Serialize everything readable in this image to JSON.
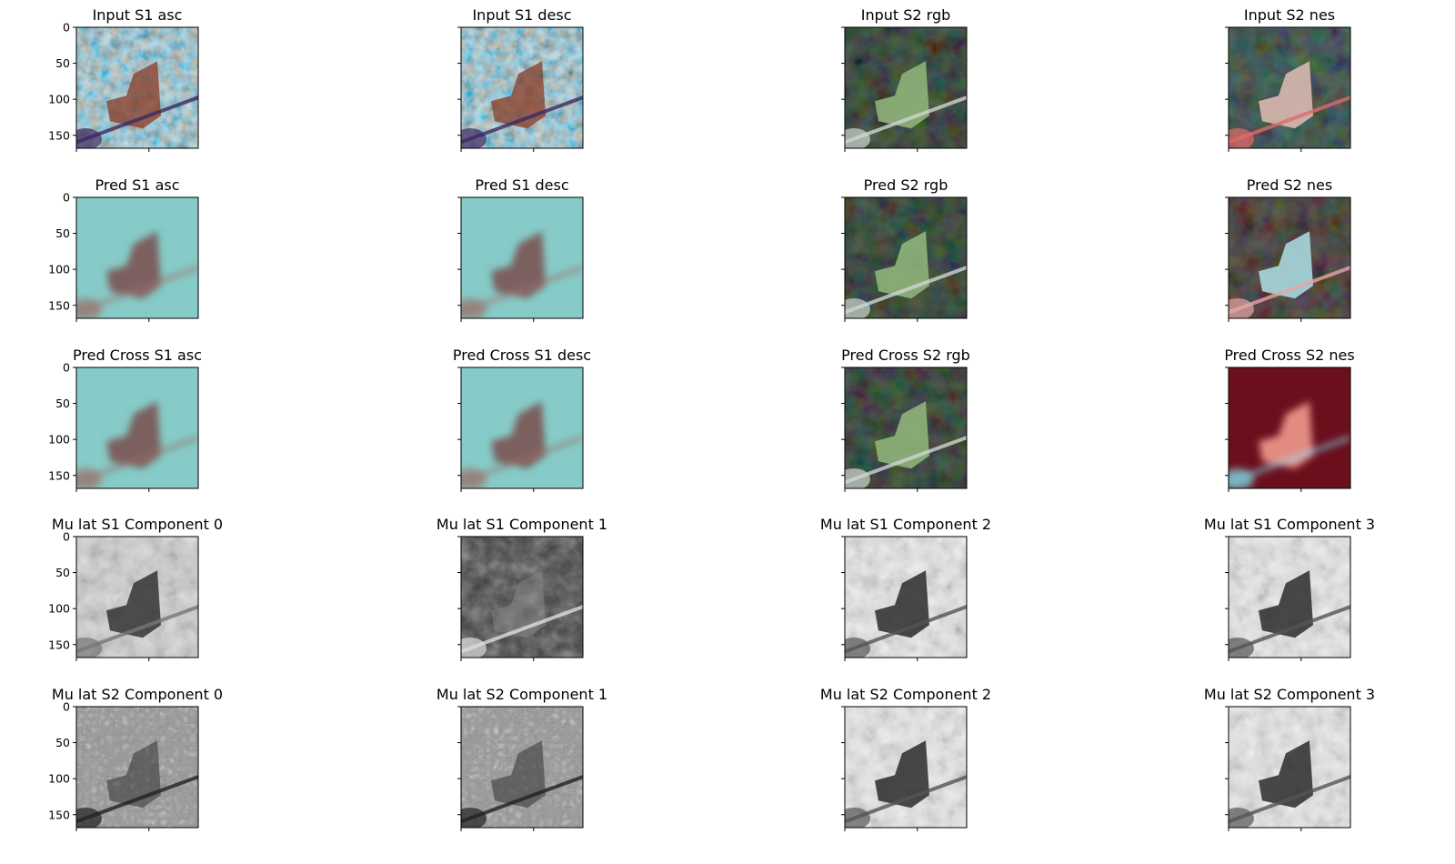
{
  "chart_data": {
    "type": "image-grid",
    "rows": 5,
    "cols": 4,
    "y_ticks": [
      0,
      50,
      100,
      150
    ],
    "y_range": [
      0,
      168
    ],
    "panels": [
      {
        "title": "Input S1 asc",
        "style": "sar"
      },
      {
        "title": "Input S1 desc",
        "style": "sar"
      },
      {
        "title": "Input S2 rgb",
        "style": "rgb"
      },
      {
        "title": "Input S2 nes",
        "style": "nes"
      },
      {
        "title": "Pred S1 asc",
        "style": "predS1"
      },
      {
        "title": "Pred S1 desc",
        "style": "predS1"
      },
      {
        "title": "Pred S2 rgb",
        "style": "rgb"
      },
      {
        "title": "Pred S2 nes",
        "style": "nes2"
      },
      {
        "title": "Pred Cross S1 asc",
        "style": "predS1"
      },
      {
        "title": "Pred Cross S1 desc",
        "style": "predS1"
      },
      {
        "title": "Pred Cross S2 rgb",
        "style": "rgb"
      },
      {
        "title": "Pred Cross S2 nes",
        "style": "nes3"
      },
      {
        "title": "Mu lat S1 Component 0",
        "style": "grayA"
      },
      {
        "title": "Mu lat S1 Component 1",
        "style": "grayDark"
      },
      {
        "title": "Mu lat S1 Component 2",
        "style": "grayLight"
      },
      {
        "title": "Mu lat S1 Component 3",
        "style": "grayLight"
      },
      {
        "title": "Mu lat S2 Component 0",
        "style": "grayTex"
      },
      {
        "title": "Mu lat S2 Component 1",
        "style": "grayTex"
      },
      {
        "title": "Mu lat S2 Component 2",
        "style": "grayLight"
      },
      {
        "title": "Mu lat S2 Component 3",
        "style": "grayLight"
      }
    ]
  }
}
